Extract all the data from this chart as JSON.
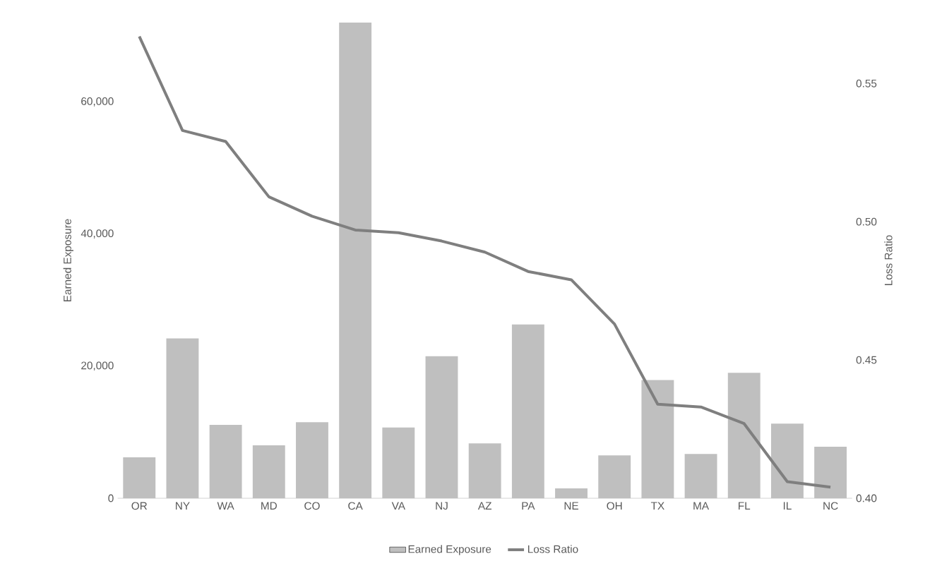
{
  "chart_data": {
    "type": "bar",
    "categories": [
      "OR",
      "NY",
      "WA",
      "MD",
      "CO",
      "CA",
      "VA",
      "NJ",
      "AZ",
      "PA",
      "NE",
      "OH",
      "TX",
      "MA",
      "FL",
      "IL",
      "NC"
    ],
    "series": [
      {
        "name": "Earned Exposure",
        "color": "#bfbfbf",
        "values": [
          6200,
          24200,
          11100,
          8000,
          11500,
          72000,
          10700,
          21500,
          8300,
          26300,
          1500,
          6500,
          17900,
          6700,
          19000,
          11300,
          7800
        ]
      },
      {
        "name": "Loss Ratio",
        "type": "line",
        "axis": "y2",
        "color": "#7f7f7f",
        "values": [
          0.567,
          0.533,
          0.529,
          0.509,
          0.502,
          0.497,
          0.496,
          0.493,
          0.489,
          0.482,
          0.479,
          0.463,
          0.434,
          0.433,
          0.427,
          0.406,
          0.404
        ]
      }
    ],
    "ylabel": "Earned Exposure",
    "y2label": "Loss Ratio",
    "ylim": [
      0,
      72000
    ],
    "yticks": [
      0,
      {
        "value": 20000,
        "label": "20,000"
      },
      {
        "value": 40000,
        "label": "40,000"
      },
      {
        "value": 60000,
        "label": "60,000"
      }
    ],
    "y2lim": [
      0.4,
      0.572
    ],
    "y2ticks": [
      {
        "value": 0.4,
        "label": "0.40"
      },
      {
        "value": 0.45,
        "label": "0.45"
      },
      {
        "value": 0.5,
        "label": "0.50"
      },
      {
        "value": 0.55,
        "label": "0.55"
      }
    ],
    "marker": "none",
    "line_style": "solid",
    "legend": "bottom"
  }
}
